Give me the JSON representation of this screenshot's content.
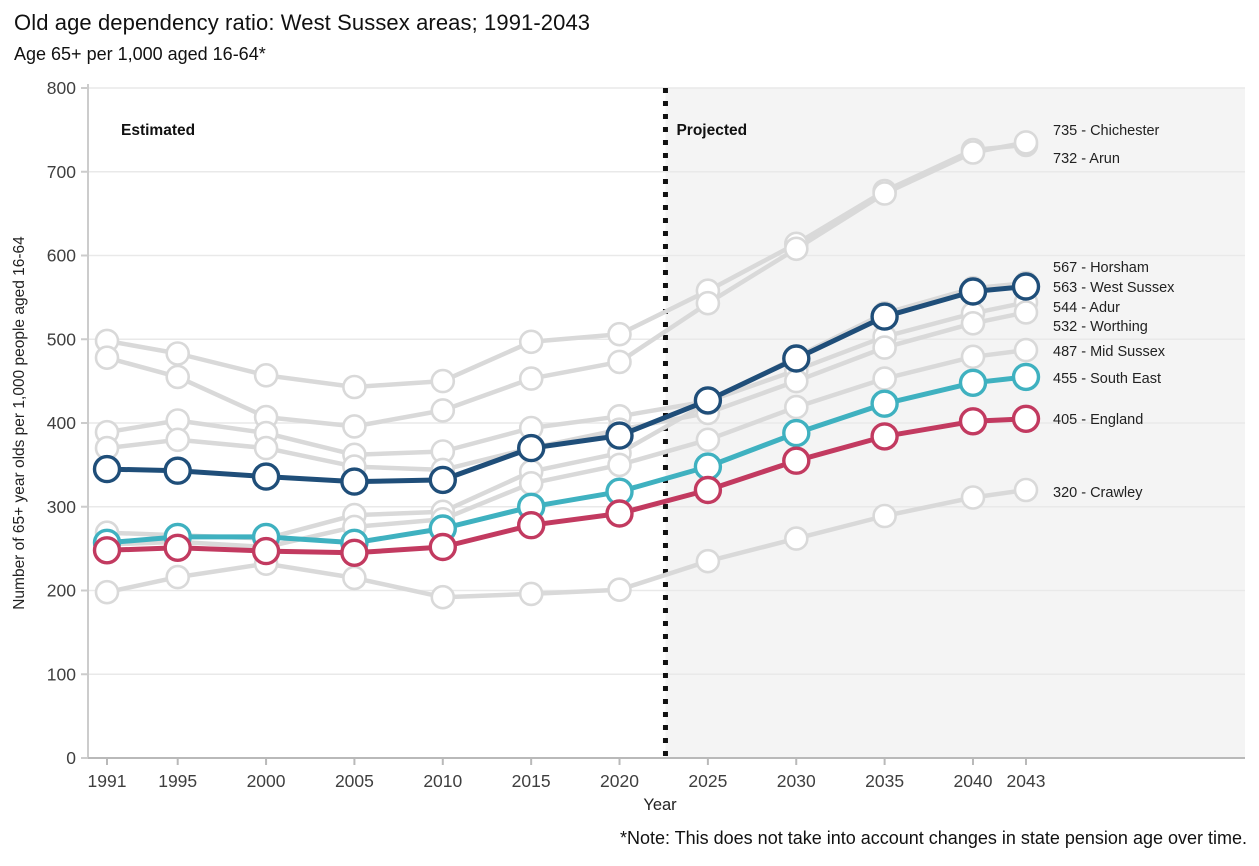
{
  "chart_data": {
    "type": "line",
    "title": "Old age dependency ratio: West Sussex areas; 1991-2043",
    "subtitle": "Age 65+ per 1,000 aged 16-64*",
    "xlabel": "Year",
    "ylabel": "Number of 65+ year olds per 1,000 people aged 16-64",
    "note": "*Note: This does not take into account changes in state pension age over time.",
    "x": [
      1991,
      1995,
      2000,
      2005,
      2010,
      2015,
      2020,
      2025,
      2030,
      2035,
      2040,
      2043
    ],
    "xtick_labels": [
      "1991",
      "1995",
      "2000",
      "2005",
      "2010",
      "2015",
      "2020",
      "2025",
      "2030",
      "2035",
      "2040",
      "2043"
    ],
    "yticks": [
      0,
      100,
      200,
      300,
      400,
      500,
      600,
      700,
      800
    ],
    "ylim": [
      0,
      800
    ],
    "grid": true,
    "legend_position": "right-end-labels",
    "divider_x": 2022.6,
    "regions": [
      {
        "label": "Estimated"
      },
      {
        "label": "Projected"
      }
    ],
    "colors": {
      "gray_series": "#d9d9d9",
      "west_sussex": "#1f4e79",
      "south_east": "#3fb1c0",
      "england": "#c23a60",
      "projected_background": "#f4f4f4",
      "divider": "#111111"
    },
    "series": [
      {
        "name": "Arun",
        "color": "#d9d9d9",
        "end_label": "732 - Arun",
        "values": [
          498,
          483,
          457,
          443,
          450,
          497,
          506,
          558,
          614,
          677,
          726,
          732
        ]
      },
      {
        "name": "Chichester",
        "color": "#d9d9d9",
        "end_label": "735 - Chichester",
        "values": [
          478,
          455,
          407,
          396,
          415,
          453,
          473,
          543,
          608,
          674,
          723,
          735
        ]
      },
      {
        "name": "Adur",
        "color": "#d9d9d9",
        "end_label": "544 - Adur",
        "values": [
          389,
          403,
          388,
          362,
          366,
          394,
          408,
          426,
          463,
          503,
          531,
          544
        ]
      },
      {
        "name": "Worthing",
        "color": "#d9d9d9",
        "end_label": "532 - Worthing",
        "values": [
          370,
          380,
          370,
          348,
          344,
          370,
          392,
          412,
          450,
          490,
          519,
          532
        ]
      },
      {
        "name": "Horsham",
        "color": "#d9d9d9",
        "end_label": "567 - Horsham",
        "values": [
          269,
          266,
          262,
          290,
          294,
          342,
          364,
          424,
          479,
          531,
          561,
          567
        ]
      },
      {
        "name": "Mid Sussex",
        "color": "#d9d9d9",
        "end_label": "487 - Mid Sussex",
        "values": [
          255,
          258,
          252,
          276,
          285,
          328,
          350,
          380,
          419,
          453,
          479,
          487
        ]
      },
      {
        "name": "Crawley",
        "color": "#d9d9d9",
        "end_label": "320 - Crawley",
        "values": [
          198,
          216,
          232,
          215,
          192,
          196,
          201,
          235,
          262,
          289,
          311,
          320
        ]
      },
      {
        "name": "South East",
        "color": "#3fb1c0",
        "end_label": "455 - South East",
        "values": [
          257,
          264,
          264,
          257,
          274,
          300,
          318,
          348,
          388,
          423,
          448,
          455
        ]
      },
      {
        "name": "England",
        "color": "#c23a60",
        "end_label": "405 - England",
        "values": [
          248,
          251,
          247,
          245,
          252,
          278,
          292,
          320,
          355,
          384,
          402,
          405
        ]
      },
      {
        "name": "West Sussex",
        "color": "#1f4e79",
        "end_label": "563 - West Sussex",
        "values": [
          345,
          343,
          336,
          330,
          332,
          370,
          385,
          427,
          477,
          527,
          557,
          563
        ]
      }
    ]
  }
}
